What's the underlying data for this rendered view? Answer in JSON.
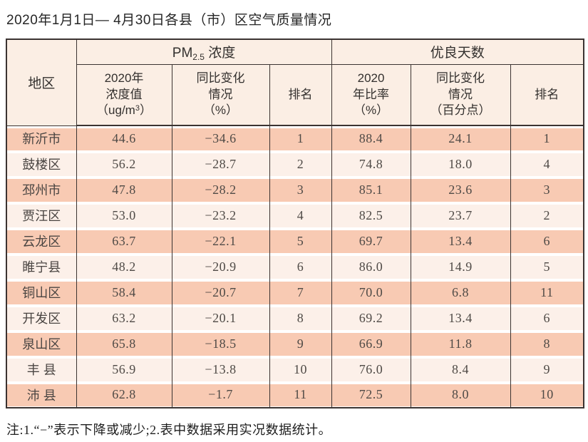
{
  "page": {
    "title": "2020年1月1日— 4月30日各县（市）区空气质量情况",
    "note": "注:1.“−”表示下降或减少;2.表中数据采用实况数据统计。"
  },
  "table": {
    "corner_header": "地区",
    "pm_group": {
      "prefix": "PM",
      "sub": "2.5",
      "suffix": " 浓度"
    },
    "good_group": "优良天数",
    "columns": {
      "pm_value": {
        "line1": "2020年",
        "line2": "浓度值",
        "line3_prefix": "（ug/m",
        "line3_sup": "3",
        "line3_suffix": "）"
      },
      "pm_change": {
        "line1": "同比变化",
        "line2": "情况",
        "line3": "（%）"
      },
      "pm_rank": "排名",
      "good_rate": {
        "line1": "2020",
        "line2": "年比率",
        "line3": "（%）"
      },
      "good_change": {
        "line1": "同比变化",
        "line2": "情况",
        "line3": "（百分点）"
      },
      "good_rank": "排名"
    },
    "rows": [
      {
        "region": "新沂市",
        "pm_value": "44.6",
        "pm_change": "−34.6",
        "pm_rank": "1",
        "good_rate": "88.4",
        "good_change": "24.1",
        "good_rank": "1"
      },
      {
        "region": "鼓楼区",
        "pm_value": "56.2",
        "pm_change": "−28.7",
        "pm_rank": "2",
        "good_rate": "74.8",
        "good_change": "18.0",
        "good_rank": "4"
      },
      {
        "region": "邳州市",
        "pm_value": "47.8",
        "pm_change": "−28.2",
        "pm_rank": "3",
        "good_rate": "85.1",
        "good_change": "23.6",
        "good_rank": "3"
      },
      {
        "region": "贾汪区",
        "pm_value": "53.0",
        "pm_change": "−23.2",
        "pm_rank": "4",
        "good_rate": "82.5",
        "good_change": "23.7",
        "good_rank": "2"
      },
      {
        "region": "云龙区",
        "pm_value": "63.7",
        "pm_change": "−22.1",
        "pm_rank": "5",
        "good_rate": "69.7",
        "good_change": "13.4",
        "good_rank": "6"
      },
      {
        "region": "睢宁县",
        "pm_value": "48.2",
        "pm_change": "−20.9",
        "pm_rank": "6",
        "good_rate": "86.0",
        "good_change": "14.9",
        "good_rank": "5"
      },
      {
        "region": "铜山区",
        "pm_value": "58.4",
        "pm_change": "−20.7",
        "pm_rank": "7",
        "good_rate": "70.0",
        "good_change": "6.8",
        "good_rank": "11"
      },
      {
        "region": "开发区",
        "pm_value": "63.2",
        "pm_change": "−20.1",
        "pm_rank": "8",
        "good_rate": "69.2",
        "good_change": "13.4",
        "good_rank": "6"
      },
      {
        "region": "泉山区",
        "pm_value": "65.8",
        "pm_change": "−18.5",
        "pm_rank": "9",
        "good_rate": "66.9",
        "good_change": "11.8",
        "good_rank": "8"
      },
      {
        "region": "丰 县",
        "pm_value": "56.9",
        "pm_change": "−13.8",
        "pm_rank": "10",
        "good_rate": "76.0",
        "good_change": "8.4",
        "good_rank": "9"
      },
      {
        "region": "沛 县",
        "pm_value": "62.8",
        "pm_change": "−1.7",
        "pm_rank": "11",
        "good_rate": "72.5",
        "good_change": "8.0",
        "good_rank": "10"
      }
    ]
  },
  "colors": {
    "row_odd": "#f8cab3",
    "row_even": "#fcf0e9",
    "header_bg": "#fbeee4",
    "border": "#3b3331",
    "num_text": "#4f4a46"
  }
}
